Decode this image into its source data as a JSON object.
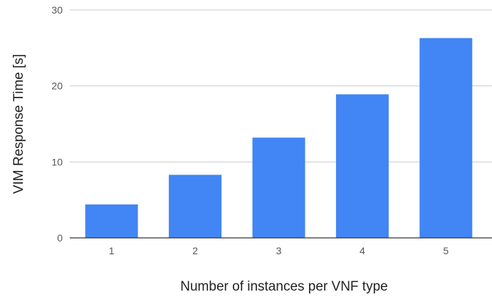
{
  "chart_data": {
    "type": "bar",
    "title": "",
    "xlabel": "Number of instances per VNF type",
    "ylabel": "VIM Response Time [s]",
    "categories": [
      "1",
      "2",
      "3",
      "4",
      "5"
    ],
    "values": [
      4.4,
      8.3,
      13.2,
      18.9,
      26.3
    ],
    "ylim": [
      0,
      30
    ],
    "yticks": [
      "0",
      "10",
      "20",
      "30"
    ],
    "grid": true,
    "colors": {
      "bar": "#4285f4",
      "grid": "#cccccc",
      "baseline": "#333333"
    }
  }
}
